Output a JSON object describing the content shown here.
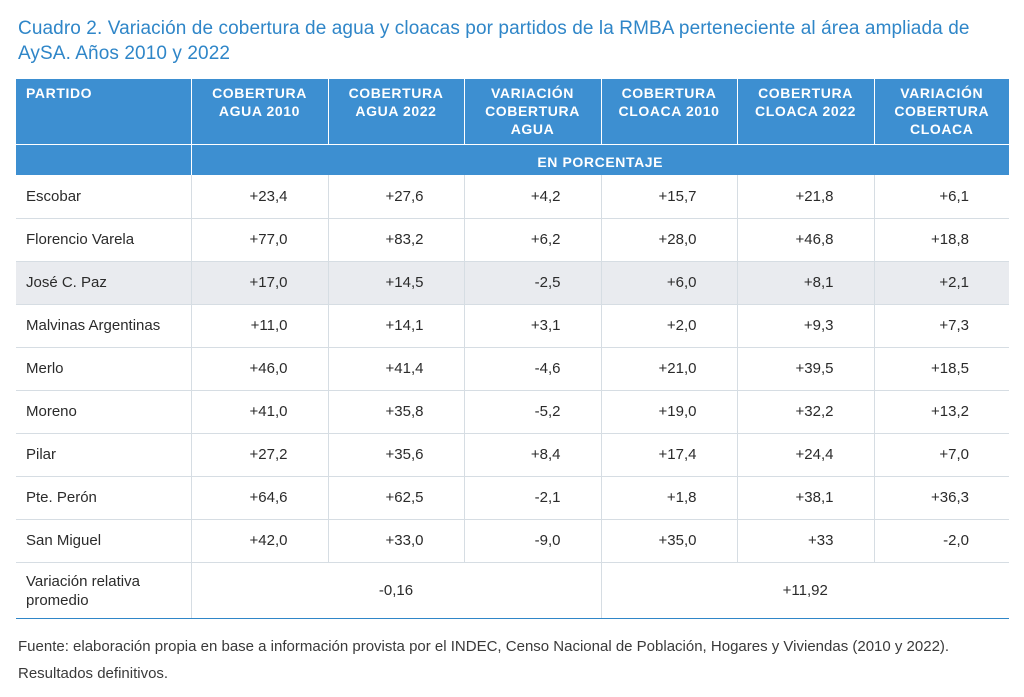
{
  "title": "Cuadro 2. Variación de cobertura de agua y cloacas por partidos de la RMBA perteneciente al área ampliada de AySA. Años 2010 y 2022",
  "headers": [
    "PARTIDO",
    "COBERTURA AGUA 2010",
    "COBERTURA AGUA 2022",
    "VARIACIÓN COBERTURA AGUA",
    "COBERTURA CLOACA 2010",
    "COBERTURA CLOACA 2022",
    "VARIACIÓN COBERTURA CLOACA"
  ],
  "unit_label": "EN PORCENTAJE",
  "rows": [
    [
      "Escobar",
      "+23,4",
      "+27,6",
      "+4,2",
      "+15,7",
      "+21,8",
      "+6,1"
    ],
    [
      "Florencio Varela",
      "+77,0",
      "+83,2",
      "+6,2",
      "+28,0",
      "+46,8",
      "+18,8"
    ],
    [
      "José C. Paz",
      "+17,0",
      "+14,5",
      "-2,5",
      "+6,0",
      "+8,1",
      "+2,1"
    ],
    [
      "Malvinas Argentinas",
      "+11,0",
      "+14,1",
      "+3,1",
      "+2,0",
      "+9,3",
      "+7,3"
    ],
    [
      "Merlo",
      "+46,0",
      "+41,4",
      "-4,6",
      "+21,0",
      "+39,5",
      "+18,5"
    ],
    [
      "Moreno",
      "+41,0",
      "+35,8",
      "-5,2",
      "+19,0",
      "+32,2",
      "+13,2"
    ],
    [
      "Pilar",
      "+27,2",
      "+35,6",
      "+8,4",
      "+17,4",
      "+24,4",
      "+7,0"
    ],
    [
      "Pte. Perón",
      "+64,6",
      "+62,5",
      "-2,1",
      "+1,8",
      "+38,1",
      "+36,3"
    ],
    [
      "San Miguel",
      "+42,0",
      "+33,0",
      "-9,0",
      "+35,0",
      "+33",
      "-2,0"
    ]
  ],
  "summary": {
    "label": "Variación relativa promedio",
    "agua": "-0,16",
    "cloaca": "+11,92"
  },
  "source": "Fuente: elaboración propia en base a información provista por el INDEC, Censo Nacional de Población, Hogares y Viviendas (2010 y 2022). Resultados definitivos.",
  "colors": {
    "title": "#2f86c8",
    "header_bg": "#3d8fd1",
    "shaded_row": "#e9ebef"
  }
}
